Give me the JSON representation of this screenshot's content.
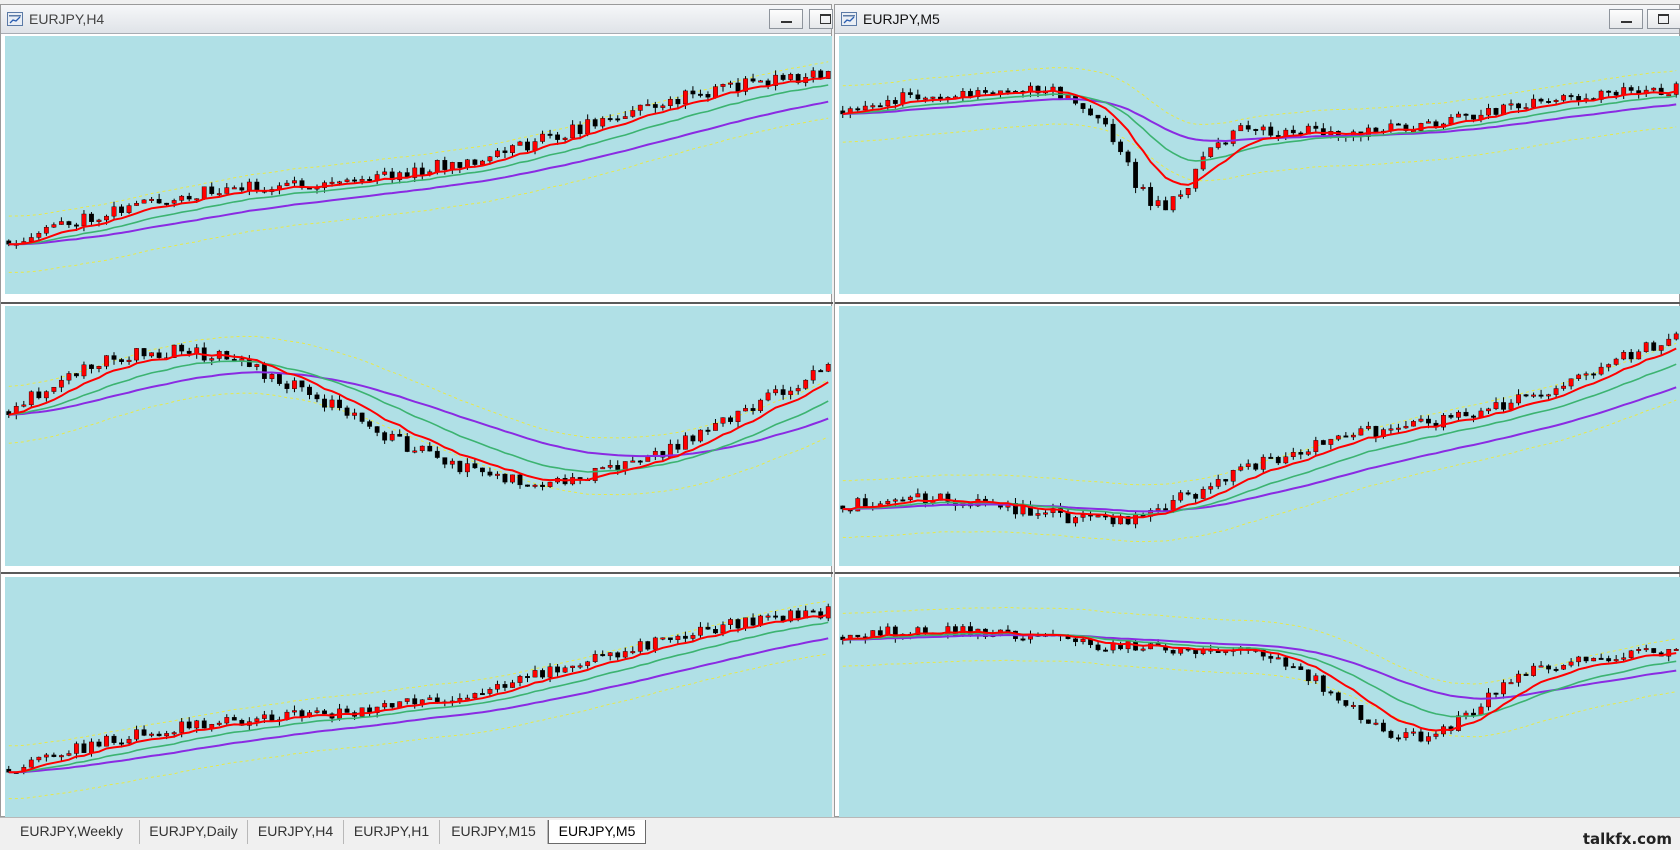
{
  "windows": [
    {
      "title": "EURJPY,H4",
      "active": false
    },
    {
      "title": "EURJPY,M5",
      "active": true
    }
  ],
  "tabs": [
    {
      "label": "EURJPY,Weekly",
      "active": false
    },
    {
      "label": "EURJPY,Daily",
      "active": false
    },
    {
      "label": "EURJPY,H4",
      "active": false
    },
    {
      "label": "EURJPY,H1",
      "active": false
    },
    {
      "label": "EURJPY,M15",
      "active": false
    },
    {
      "label": "EURJPY,M5",
      "active": true
    }
  ],
  "watermark": "talkfx.com",
  "colors": {
    "chart_bg": "#b0e0e6",
    "bull_candle": "#ff0000",
    "bear_candle": "#000000",
    "ma_fast": "#ff0000",
    "ma_mid": "#3cb371",
    "ma_slow": "#8a2be2",
    "envelope": "#e8e84a"
  },
  "icons": {
    "window": "chart-window-icon",
    "minimize": "minimize-icon",
    "maximize": "maximize-icon"
  }
}
